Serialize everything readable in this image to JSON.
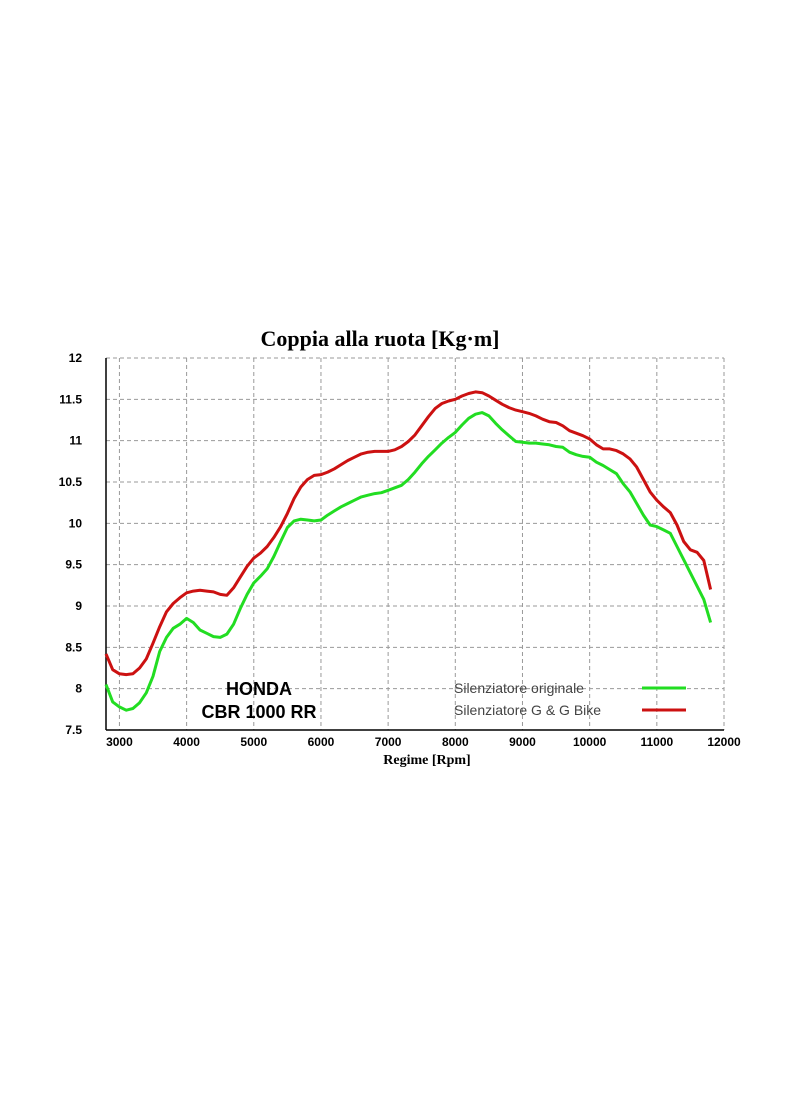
{
  "chart_data": {
    "type": "line",
    "title": "Coppia alla ruota [Kg·m]",
    "xlabel": "Regime [Rpm]",
    "ylabel": "",
    "xlim": [
      2800,
      12000
    ],
    "ylim": [
      7.5,
      12
    ],
    "xticks": [
      "3000",
      "4000",
      "5000",
      "6000",
      "7000",
      "8000",
      "9000",
      "10000",
      "11000",
      "12000"
    ],
    "yticks": [
      "7.5",
      "8",
      "8.5",
      "9",
      "9.5",
      "10",
      "10.5",
      "11",
      "11.5",
      "12"
    ],
    "grid": true,
    "legend_position": "bottom-right",
    "annotation": [
      "HONDA",
      "CBR 1000 RR"
    ],
    "series": [
      {
        "name": "Silenziatore originale",
        "color": "#22dd22",
        "x": [
          2800,
          2900,
          3000,
          3100,
          3200,
          3300,
          3400,
          3500,
          3600,
          3700,
          3800,
          3900,
          4000,
          4100,
          4200,
          4300,
          4400,
          4500,
          4600,
          4700,
          4800,
          4900,
          5000,
          5100,
          5200,
          5300,
          5400,
          5500,
          5600,
          5700,
          5800,
          5900,
          6000,
          6100,
          6200,
          6300,
          6400,
          6500,
          6600,
          6700,
          6800,
          6900,
          7000,
          7100,
          7200,
          7300,
          7400,
          7500,
          7600,
          7700,
          7800,
          7900,
          8000,
          8100,
          8200,
          8300,
          8400,
          8500,
          8600,
          8700,
          8800,
          8900,
          9000,
          9100,
          9200,
          9300,
          9400,
          9500,
          9600,
          9700,
          9800,
          9900,
          10000,
          10100,
          10200,
          10300,
          10400,
          10500,
          10600,
          10700,
          10800,
          10900,
          11000,
          11100,
          11200,
          11300,
          11400,
          11500,
          11600,
          11700,
          11800
        ],
        "values": [
          8.05,
          7.84,
          7.78,
          7.74,
          7.76,
          7.83,
          7.95,
          8.15,
          8.45,
          8.62,
          8.73,
          8.78,
          8.85,
          8.8,
          8.71,
          8.67,
          8.63,
          8.62,
          8.66,
          8.78,
          8.97,
          9.14,
          9.28,
          9.36,
          9.45,
          9.6,
          9.78,
          9.95,
          10.03,
          10.05,
          10.04,
          10.03,
          10.04,
          10.1,
          10.15,
          10.2,
          10.24,
          10.28,
          10.32,
          10.34,
          10.36,
          10.37,
          10.4,
          10.43,
          10.46,
          10.53,
          10.62,
          10.72,
          10.81,
          10.89,
          10.97,
          11.04,
          11.1,
          11.19,
          11.27,
          11.32,
          11.34,
          11.3,
          11.21,
          11.13,
          11.06,
          10.99,
          10.98,
          10.97,
          10.97,
          10.96,
          10.95,
          10.93,
          10.92,
          10.86,
          10.83,
          10.81,
          10.8,
          10.74,
          10.7,
          10.65,
          10.6,
          10.48,
          10.38,
          10.24,
          10.1,
          9.98,
          9.96,
          9.92,
          9.88,
          9.72,
          9.56,
          9.4,
          9.24,
          9.08,
          8.8
        ]
      },
      {
        "name": "Silenziatore G & G Bike",
        "color": "#cc1111",
        "x": [
          2800,
          2900,
          3000,
          3100,
          3200,
          3300,
          3400,
          3500,
          3600,
          3700,
          3800,
          3900,
          4000,
          4100,
          4200,
          4300,
          4400,
          4500,
          4600,
          4700,
          4800,
          4900,
          5000,
          5100,
          5200,
          5300,
          5400,
          5500,
          5600,
          5700,
          5800,
          5900,
          6000,
          6100,
          6200,
          6300,
          6400,
          6500,
          6600,
          6700,
          6800,
          6900,
          7000,
          7100,
          7200,
          7300,
          7400,
          7500,
          7600,
          7700,
          7800,
          7900,
          8000,
          8100,
          8200,
          8300,
          8400,
          8500,
          8600,
          8700,
          8800,
          8900,
          9000,
          9100,
          9200,
          9300,
          9400,
          9500,
          9600,
          9700,
          9800,
          9900,
          10000,
          10100,
          10200,
          10300,
          10400,
          10500,
          10600,
          10700,
          10800,
          10900,
          11000,
          11100,
          11200,
          11300,
          11400,
          11500,
          11600,
          11700,
          11800
        ],
        "values": [
          8.42,
          8.23,
          8.18,
          8.17,
          8.18,
          8.25,
          8.36,
          8.55,
          8.75,
          8.93,
          9.03,
          9.1,
          9.16,
          9.18,
          9.19,
          9.18,
          9.17,
          9.14,
          9.13,
          9.22,
          9.35,
          9.48,
          9.58,
          9.64,
          9.72,
          9.83,
          9.96,
          10.12,
          10.3,
          10.44,
          10.53,
          10.58,
          10.59,
          10.62,
          10.66,
          10.71,
          10.76,
          10.8,
          10.84,
          10.86,
          10.87,
          10.87,
          10.87,
          10.89,
          10.93,
          10.99,
          11.07,
          11.18,
          11.29,
          11.39,
          11.45,
          11.48,
          11.5,
          11.54,
          11.57,
          11.59,
          11.58,
          11.54,
          11.49,
          11.44,
          11.4,
          11.37,
          11.35,
          11.33,
          11.3,
          11.26,
          11.23,
          11.22,
          11.18,
          11.12,
          11.09,
          11.06,
          11.02,
          10.95,
          10.9,
          10.9,
          10.88,
          10.84,
          10.78,
          10.68,
          10.53,
          10.38,
          10.28,
          10.2,
          10.13,
          9.98,
          9.78,
          9.68,
          9.65,
          9.55,
          9.2
        ]
      }
    ]
  }
}
